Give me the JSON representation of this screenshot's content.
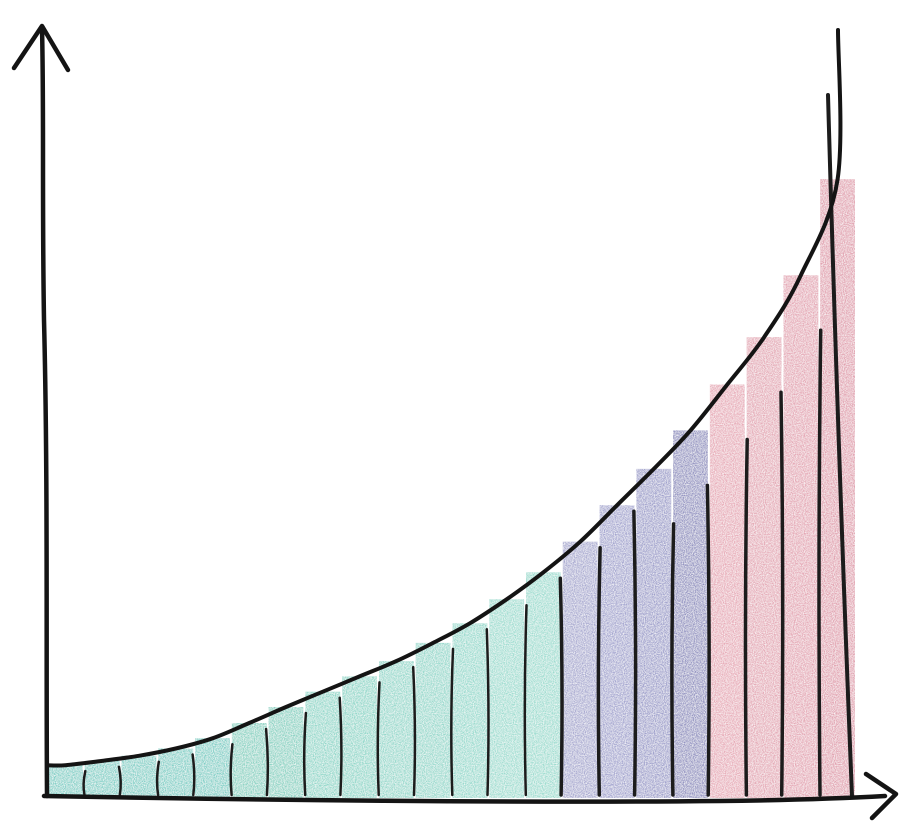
{
  "chart_data": {
    "type": "area",
    "style": "hand-drawn crayon sketch, area under an increasing convex curve divided into vertical strips",
    "title": "",
    "xlabel": "",
    "ylabel": "",
    "x": [
      0,
      1,
      2,
      3,
      4,
      5,
      6,
      7,
      8,
      9,
      10,
      11,
      12,
      13,
      14,
      15,
      16,
      17,
      18,
      19,
      20,
      21
    ],
    "values": [
      4.5,
      5.1,
      5.8,
      6.8,
      8.2,
      10.3,
      12.5,
      14.6,
      16.7,
      18.8,
      21.3,
      24.0,
      27.3,
      31.0,
      35.2,
      40.2,
      45.2,
      50.5,
      56.8,
      63.3,
      71.8,
      85.0
    ],
    "xlim": [
      0,
      22
    ],
    "ylim": [
      0,
      100
    ],
    "grid": false,
    "legend": "none",
    "strip_colors": [
      "#7ccfc6",
      "#7ccfc6",
      "#7ccfc6",
      "#7ccfc6",
      "#7ccfc6",
      "#86d2c2",
      "#86d2c2",
      "#8ed7c9",
      "#8ed7c9",
      "#93d8cb",
      "#93d8cb",
      "#95dacd",
      "#9bdccf",
      "#9bdccf",
      "#a7a8d0",
      "#a2a3cf",
      "#9c9dcb",
      "#8f8fc0",
      "#e7a9b6",
      "#e4a7b4",
      "#e4a5b3",
      "#e19fae"
    ],
    "colors": {
      "teal": "#8ed7c9",
      "lavender": "#9c9dcb",
      "pink": "#e4a5b3",
      "ink": "#141414"
    }
  }
}
